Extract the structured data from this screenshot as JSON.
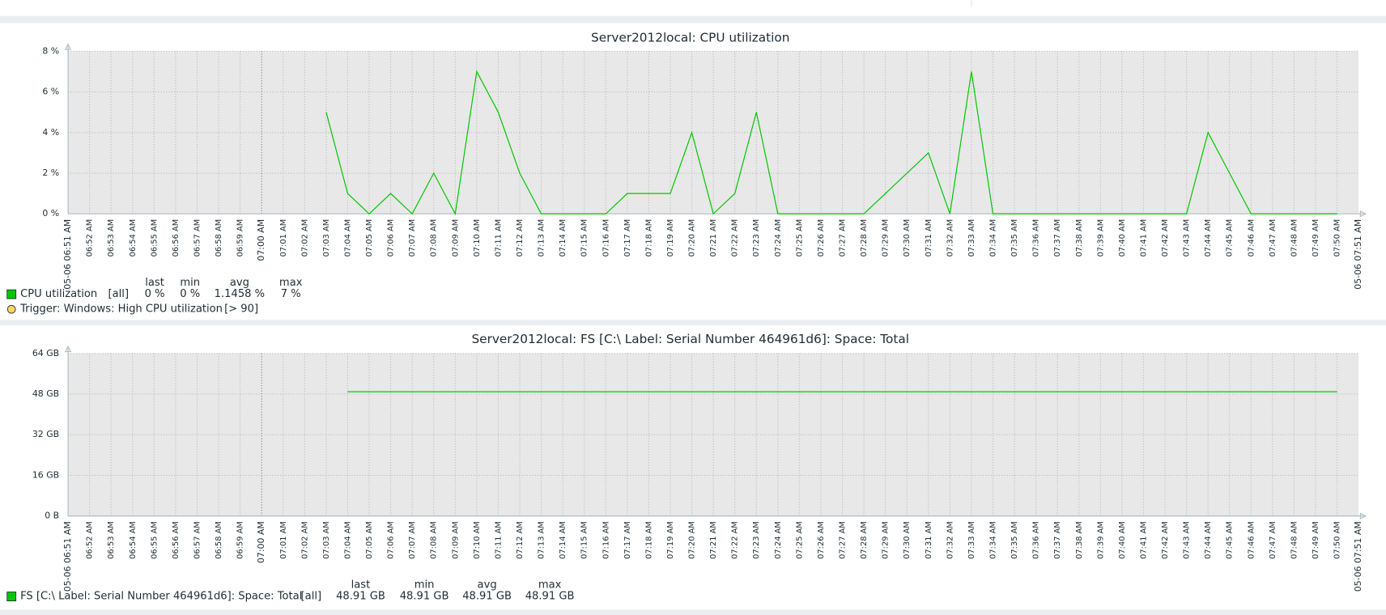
{
  "chart_data": [
    {
      "type": "line",
      "title": "Server2012local: CPU utilization",
      "xlim": [
        "05-06 06:51 AM",
        "05-06 07:51 AM"
      ],
      "xticks": [
        "05-06 06:51 AM",
        "06:52 AM",
        "06:53 AM",
        "06:54 AM",
        "06:55 AM",
        "06:56 AM",
        "06:57 AM",
        "06:58 AM",
        "06:59 AM",
        "07:00 AM",
        "07:01 AM",
        "07:02 AM",
        "07:03 AM",
        "07:04 AM",
        "07:05 AM",
        "07:06 AM",
        "07:07 AM",
        "07:08 AM",
        "07:09 AM",
        "07:10 AM",
        "07:11 AM",
        "07:12 AM",
        "07:13 AM",
        "07:14 AM",
        "07:15 AM",
        "07:16 AM",
        "07:17 AM",
        "07:18 AM",
        "07:19 AM",
        "07:20 AM",
        "07:21 AM",
        "07:22 AM",
        "07:23 AM",
        "07:24 AM",
        "07:25 AM",
        "07:26 AM",
        "07:27 AM",
        "07:28 AM",
        "07:29 AM",
        "07:30 AM",
        "07:31 AM",
        "07:32 AM",
        "07:33 AM",
        "07:34 AM",
        "07:35 AM",
        "07:36 AM",
        "07:37 AM",
        "07:38 AM",
        "07:39 AM",
        "07:40 AM",
        "07:41 AM",
        "07:42 AM",
        "07:43 AM",
        "07:44 AM",
        "07:45 AM",
        "07:46 AM",
        "07:47 AM",
        "07:48 AM",
        "07:49 AM",
        "07:50 AM",
        "05-06 07:51 AM"
      ],
      "ylim": [
        0,
        8
      ],
      "yticks": [
        {
          "value": 0,
          "label": "0 %"
        },
        {
          "value": 2,
          "label": "2 %"
        },
        {
          "value": 4,
          "label": "4 %"
        },
        {
          "value": 6,
          "label": "6 %"
        },
        {
          "value": 8,
          "label": "8 %"
        }
      ],
      "grid": true,
      "x": [
        "07:03 AM",
        "07:04 AM",
        "07:05 AM",
        "07:06 AM",
        "07:07 AM",
        "07:08 AM",
        "07:09 AM",
        "07:10 AM",
        "07:11 AM",
        "07:12 AM",
        "07:13 AM",
        "07:14 AM",
        "07:15 AM",
        "07:16 AM",
        "07:17 AM",
        "07:18 AM",
        "07:19 AM",
        "07:20 AM",
        "07:21 AM",
        "07:22 AM",
        "07:23 AM",
        "07:24 AM",
        "07:25 AM",
        "07:26 AM",
        "07:27 AM",
        "07:28 AM",
        "07:29 AM",
        "07:30 AM",
        "07:31 AM",
        "07:32 AM",
        "07:33 AM",
        "07:34 AM",
        "07:35 AM",
        "07:36 AM",
        "07:37 AM",
        "07:38 AM",
        "07:39 AM",
        "07:40 AM",
        "07:41 AM",
        "07:42 AM",
        "07:43 AM",
        "07:44 AM",
        "07:45 AM",
        "07:46 AM",
        "07:47 AM",
        "07:48 AM",
        "07:49 AM",
        "07:50 AM"
      ],
      "series": [
        {
          "name": "CPU utilization",
          "color": "#00c800",
          "function": "[all]",
          "stats": [
            "0 %",
            "0 %",
            "1.1458 %",
            "7 %"
          ],
          "values": [
            5,
            1,
            0,
            1,
            0,
            2,
            0,
            7,
            5,
            2,
            0,
            0,
            0,
            0,
            1,
            1,
            1,
            4,
            0,
            1,
            5,
            0,
            0,
            0,
            0,
            0,
            1,
            2,
            3,
            0,
            7,
            0,
            0,
            0,
            0,
            0,
            0,
            0,
            0,
            0,
            0,
            4,
            2,
            0,
            0,
            0,
            0,
            0
          ]
        }
      ],
      "legend_columns": [
        "last",
        "min",
        "avg",
        "max"
      ],
      "trigger": {
        "name": "Trigger: Windows: High CPU utilization",
        "condition": "[> 90]"
      }
    },
    {
      "type": "line",
      "title": "Server2012local: FS [C:\\ Label:  Serial Number 464961d6]: Space: Total",
      "xlim": [
        "05-06 06:51 AM",
        "05-06 07:51 AM"
      ],
      "xticks": [
        "05-06 06:51 AM",
        "06:52 AM",
        "06:53 AM",
        "06:54 AM",
        "06:55 AM",
        "06:56 AM",
        "06:57 AM",
        "06:58 AM",
        "06:59 AM",
        "07:00 AM",
        "07:01 AM",
        "07:02 AM",
        "07:03 AM",
        "07:04 AM",
        "07:05 AM",
        "07:06 AM",
        "07:07 AM",
        "07:08 AM",
        "07:09 AM",
        "07:10 AM",
        "07:11 AM",
        "07:12 AM",
        "07:13 AM",
        "07:14 AM",
        "07:15 AM",
        "07:16 AM",
        "07:17 AM",
        "07:18 AM",
        "07:19 AM",
        "07:20 AM",
        "07:21 AM",
        "07:22 AM",
        "07:23 AM",
        "07:24 AM",
        "07:25 AM",
        "07:26 AM",
        "07:27 AM",
        "07:28 AM",
        "07:29 AM",
        "07:30 AM",
        "07:31 AM",
        "07:32 AM",
        "07:33 AM",
        "07:34 AM",
        "07:35 AM",
        "07:36 AM",
        "07:37 AM",
        "07:38 AM",
        "07:39 AM",
        "07:40 AM",
        "07:41 AM",
        "07:42 AM",
        "07:43 AM",
        "07:44 AM",
        "07:45 AM",
        "07:46 AM",
        "07:47 AM",
        "07:48 AM",
        "07:49 AM",
        "07:50 AM",
        "05-06 07:51 AM"
      ],
      "ylim": [
        0,
        64
      ],
      "yticks": [
        {
          "value": 0,
          "label": "0 B"
        },
        {
          "value": 16,
          "label": "16 GB"
        },
        {
          "value": 32,
          "label": "32 GB"
        },
        {
          "value": 48,
          "label": "48 GB"
        },
        {
          "value": 64,
          "label": "64 GB"
        }
      ],
      "grid": true,
      "x": [
        "07:04 AM",
        "07:05 AM",
        "07:06 AM",
        "07:07 AM",
        "07:08 AM",
        "07:09 AM",
        "07:10 AM",
        "07:11 AM",
        "07:12 AM",
        "07:13 AM",
        "07:14 AM",
        "07:15 AM",
        "07:16 AM",
        "07:17 AM",
        "07:18 AM",
        "07:19 AM",
        "07:20 AM",
        "07:21 AM",
        "07:22 AM",
        "07:23 AM",
        "07:24 AM",
        "07:25 AM",
        "07:26 AM",
        "07:27 AM",
        "07:28 AM",
        "07:29 AM",
        "07:30 AM",
        "07:31 AM",
        "07:32 AM",
        "07:33 AM",
        "07:34 AM",
        "07:35 AM",
        "07:36 AM",
        "07:37 AM",
        "07:38 AM",
        "07:39 AM",
        "07:40 AM",
        "07:41 AM",
        "07:42 AM",
        "07:43 AM",
        "07:44 AM",
        "07:45 AM",
        "07:46 AM",
        "07:47 AM",
        "07:48 AM",
        "07:49 AM",
        "07:50 AM"
      ],
      "series": [
        {
          "name": "FS [C:\\ Label:  Serial Number 464961d6]: Space: Total",
          "color": "#00c800",
          "function": "[all]",
          "stats": [
            "48.91 GB",
            "48.91 GB",
            "48.91 GB",
            "48.91 GB"
          ],
          "values": [
            48.91,
            48.91,
            48.91,
            48.91,
            48.91,
            48.91,
            48.91,
            48.91,
            48.91,
            48.91,
            48.91,
            48.91,
            48.91,
            48.91,
            48.91,
            48.91,
            48.91,
            48.91,
            48.91,
            48.91,
            48.91,
            48.91,
            48.91,
            48.91,
            48.91,
            48.91,
            48.91,
            48.91,
            48.91,
            48.91,
            48.91,
            48.91,
            48.91,
            48.91,
            48.91,
            48.91,
            48.91,
            48.91,
            48.91,
            48.91,
            48.91,
            48.91,
            48.91,
            48.91,
            48.91,
            48.91,
            48.91
          ]
        }
      ],
      "legend_columns": [
        "last",
        "min",
        "avg",
        "max"
      ]
    }
  ]
}
